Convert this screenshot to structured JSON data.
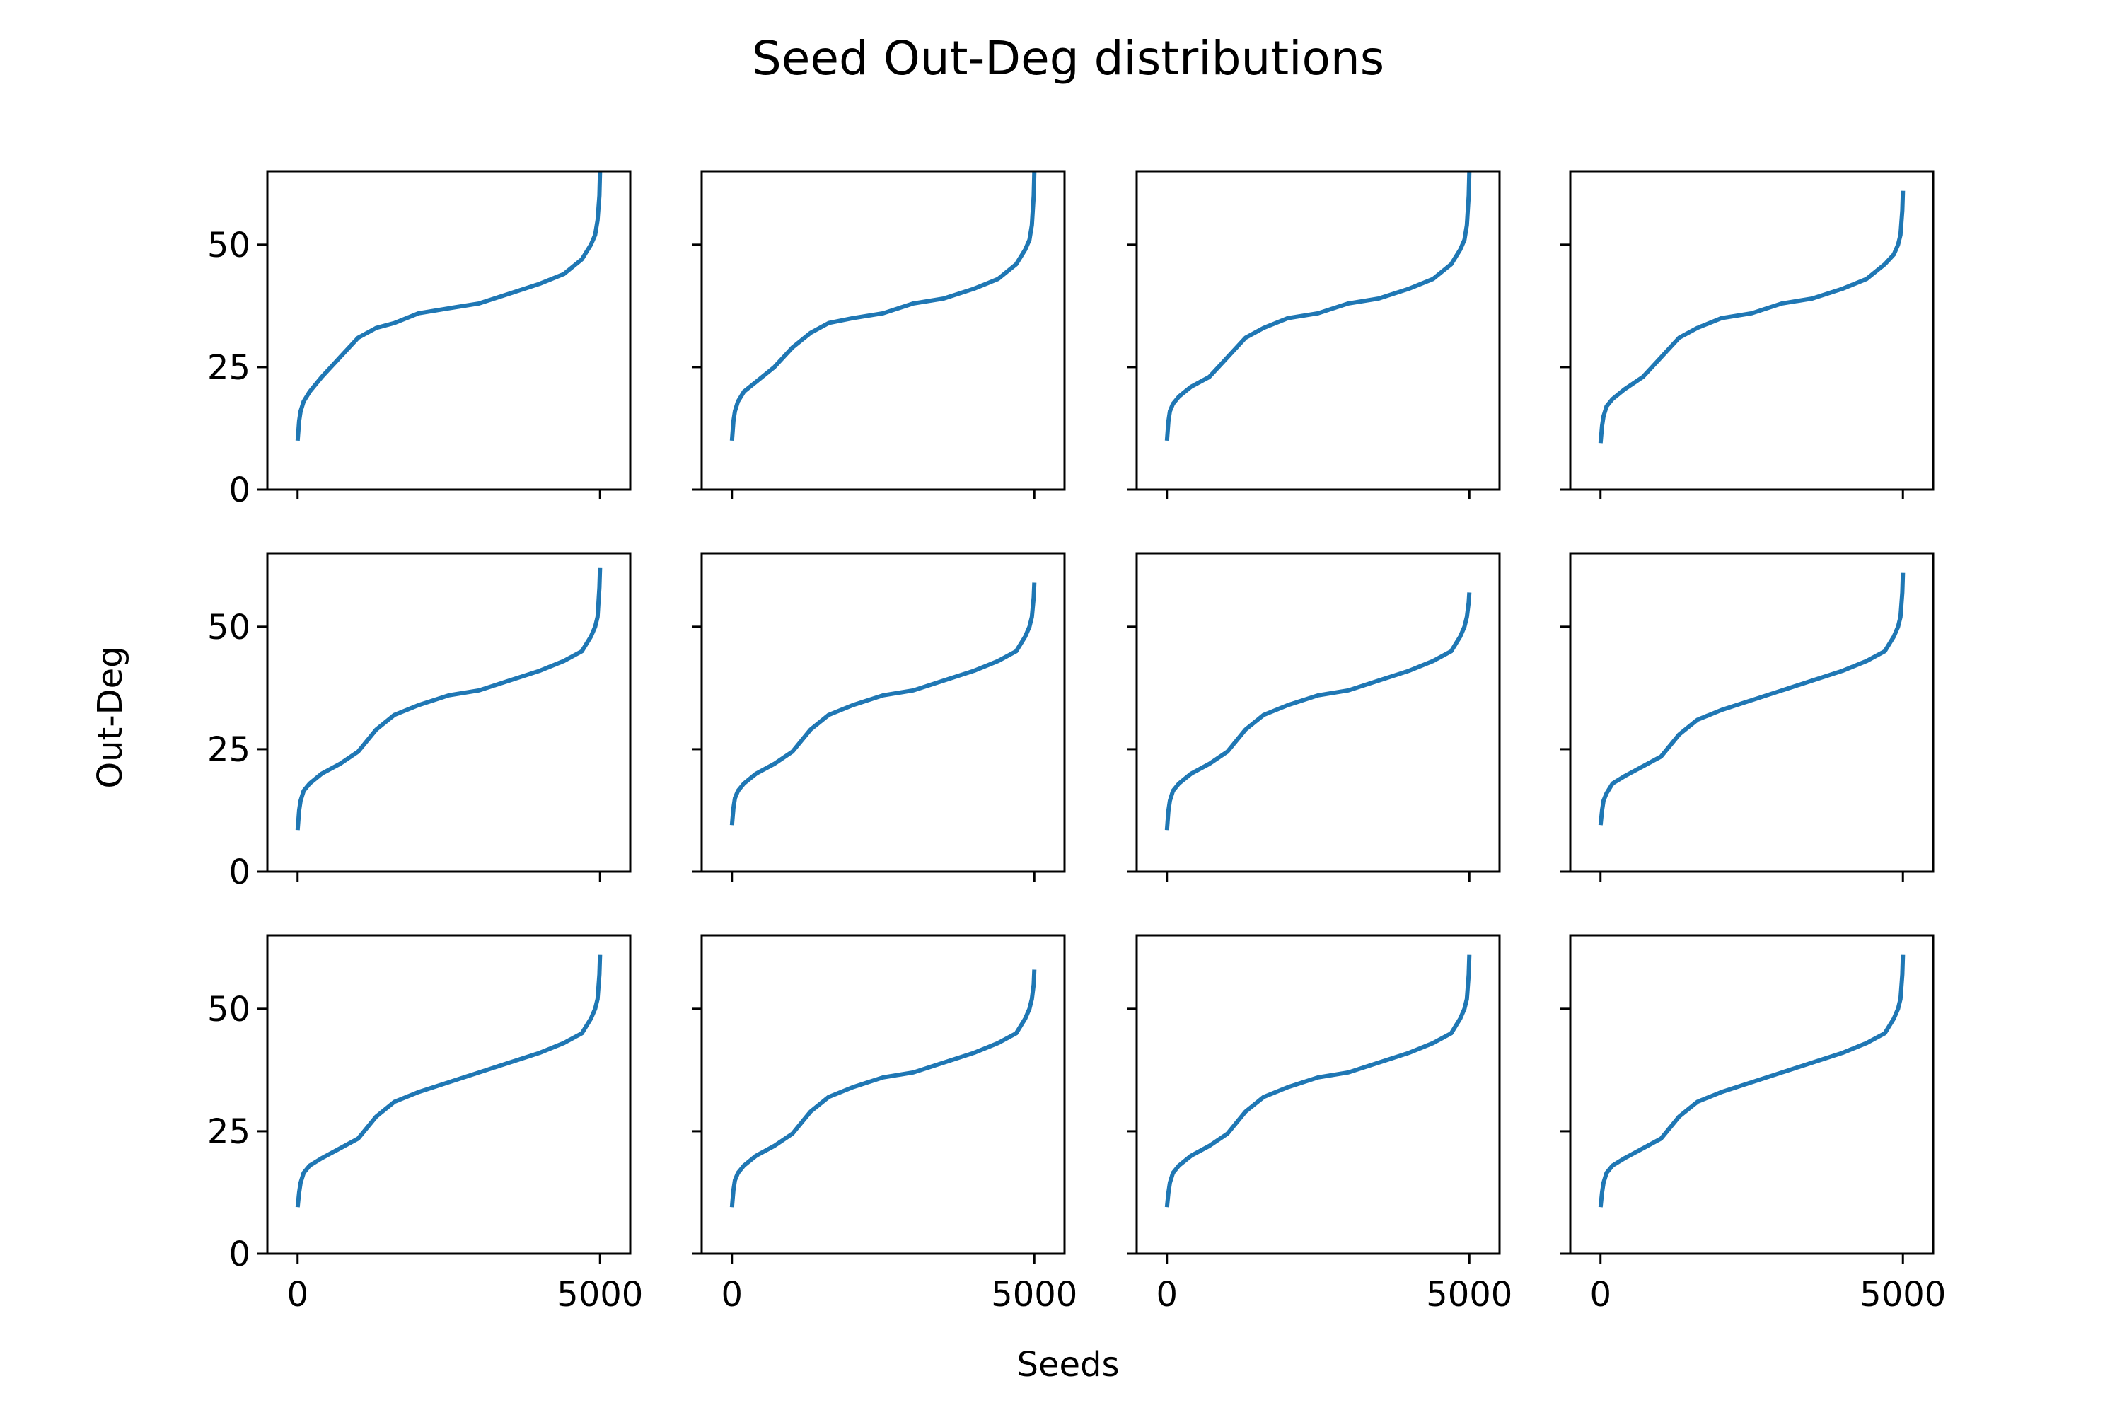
{
  "figure": {
    "title": "Seed Out-Deg distributions",
    "xlabel": "Seeds",
    "ylabel": "Out-Deg"
  },
  "chart_data": {
    "type": "line",
    "layout": "grid 3x4",
    "sharex": true,
    "sharey": true,
    "xlim": [
      -500,
      5500
    ],
    "ylim": [
      0,
      65
    ],
    "xticks": [
      0,
      5000
    ],
    "yticks": [
      0,
      25,
      50
    ],
    "line_color": "#1f77b4",
    "grid": false,
    "legend": "none",
    "series_x": [
      0,
      25,
      50,
      100,
      200,
      400,
      700,
      1000,
      1300,
      1600,
      2000,
      2500,
      3000,
      3500,
      4000,
      4400,
      4700,
      4850,
      4920,
      4960,
      4990,
      5000
    ],
    "panels": [
      {
        "name": "",
        "y": [
          10,
          14,
          16,
          18,
          20,
          23,
          27,
          31,
          33,
          34,
          36,
          37,
          38,
          40,
          42,
          44,
          47,
          50,
          52,
          55,
          60,
          65
        ]
      },
      {
        "name": "",
        "y": [
          10,
          14,
          16,
          18,
          20,
          22,
          25,
          29,
          32,
          34,
          35,
          36,
          38,
          39,
          41,
          43,
          46,
          49,
          51,
          54,
          60,
          65
        ]
      },
      {
        "name": "",
        "y": [
          10,
          14,
          16,
          17.5,
          19,
          21,
          23,
          27,
          31,
          33,
          35,
          36,
          38,
          39,
          41,
          43,
          46,
          49,
          51,
          54,
          60,
          65
        ]
      },
      {
        "name": "",
        "y": [
          9.5,
          13,
          15,
          17,
          18.5,
          20.5,
          23,
          27,
          31,
          33,
          35,
          36,
          38,
          39,
          41,
          43,
          46,
          48,
          50,
          52,
          57,
          61
        ]
      },
      {
        "name": "",
        "y": [
          8.5,
          12.5,
          14.5,
          16.5,
          18,
          20,
          22,
          24.5,
          29,
          32,
          34,
          36,
          37,
          39,
          41,
          43,
          45,
          48,
          50,
          52,
          58,
          62
        ]
      },
      {
        "name": "",
        "y": [
          9.5,
          13,
          15,
          16.5,
          18,
          20,
          22,
          24.5,
          29,
          32,
          34,
          36,
          37,
          39,
          41,
          43,
          45,
          48,
          50,
          52,
          56,
          59
        ]
      },
      {
        "name": "",
        "y": [
          8.5,
          12.5,
          14.5,
          16.5,
          18,
          20,
          22,
          24.5,
          29,
          32,
          34,
          36,
          37,
          39,
          41,
          43,
          45,
          48,
          50,
          52,
          55,
          57
        ]
      },
      {
        "name": "",
        "y": [
          9.5,
          12.5,
          14.5,
          16,
          18,
          19.5,
          21.5,
          23.5,
          28,
          31,
          33,
          35,
          37,
          39,
          41,
          43,
          45,
          48,
          50,
          52,
          57,
          61
        ]
      },
      {
        "name": "",
        "y": [
          9.5,
          12.5,
          14.5,
          16.5,
          18,
          19.5,
          21.5,
          23.5,
          28,
          31,
          33,
          35,
          37,
          39,
          41,
          43,
          45,
          48,
          50,
          52,
          57,
          61
        ]
      },
      {
        "name": "",
        "y": [
          9.5,
          13,
          15,
          16.5,
          18,
          20,
          22,
          24.5,
          29,
          32,
          34,
          36,
          37,
          39,
          41,
          43,
          45,
          48,
          50,
          52,
          55,
          58
        ]
      },
      {
        "name": "",
        "y": [
          9.5,
          12.5,
          14.5,
          16.5,
          18,
          20,
          22,
          24.5,
          29,
          32,
          34,
          36,
          37,
          39,
          41,
          43,
          45,
          48,
          50,
          52,
          57,
          61
        ]
      },
      {
        "name": "",
        "y": [
          9.5,
          12.5,
          14.5,
          16.5,
          18,
          19.5,
          21.5,
          23.5,
          28,
          31,
          33,
          35,
          37,
          39,
          41,
          43,
          45,
          48,
          50,
          52,
          57,
          61
        ]
      }
    ]
  }
}
